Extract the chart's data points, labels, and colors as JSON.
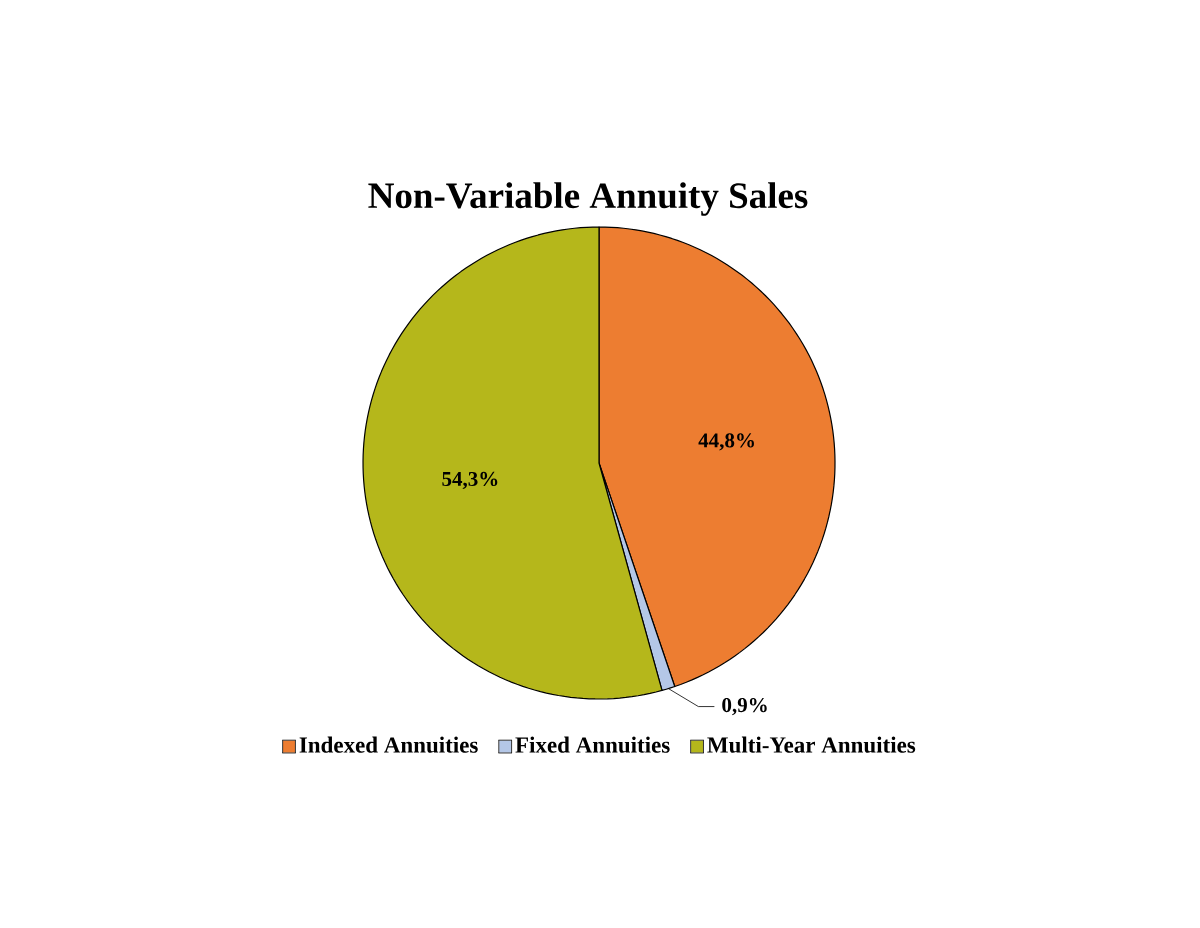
{
  "chart_data": {
    "type": "pie",
    "title": "Non-Variable Annuity Sales",
    "categories": [
      "Indexed Annuities",
      "Fixed Annuities",
      "Multi-Year Annuities"
    ],
    "values": [
      44.8,
      0.9,
      54.3
    ],
    "colors": [
      "#ed7d31",
      "#b4c7e7",
      "#b5b71b"
    ],
    "value_labels": [
      "44,8%",
      "0,9%",
      "54,3%"
    ],
    "legend": "bottom"
  }
}
